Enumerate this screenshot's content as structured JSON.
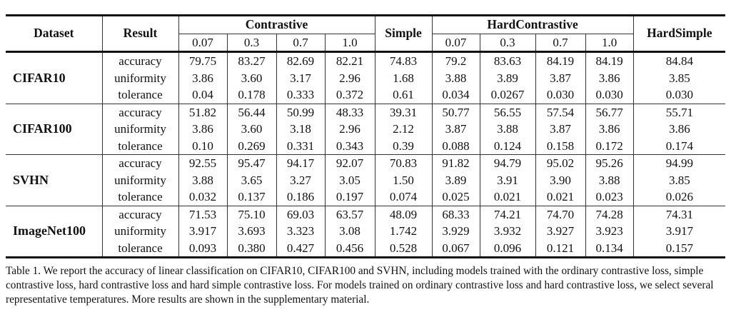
{
  "header": {
    "dataset": "Dataset",
    "result": "Result",
    "contrastive": "Contrastive",
    "simple": "Simple",
    "hard_contrastive": "HardContrastive",
    "hard_simple": "HardSimple",
    "contrastive_temps": [
      "0.07",
      "0.3",
      "0.7",
      "1.0"
    ],
    "hard_temps": [
      "0.07",
      "0.3",
      "0.7",
      "1.0"
    ]
  },
  "metrics": [
    "accuracy",
    "uniformity",
    "tolerance"
  ],
  "rows": [
    {
      "dataset": "CIFAR10",
      "values": [
        [
          "79.75",
          "83.27",
          "82.69",
          "82.21",
          "74.83",
          "79.2",
          "83.63",
          "84.19",
          "84.19",
          "84.84"
        ],
        [
          "3.86",
          "3.60",
          "3.17",
          "2.96",
          "1.68",
          "3.88",
          "3.89",
          "3.87",
          "3.86",
          "3.85"
        ],
        [
          "0.04",
          "0.178",
          "0.333",
          "0.372",
          "0.61",
          "0.034",
          "0.0267",
          "0.030",
          "0.030",
          "0.030"
        ]
      ]
    },
    {
      "dataset": "CIFAR100",
      "values": [
        [
          "51.82",
          "56.44",
          "50.99",
          "48.33",
          "39.31",
          "50.77",
          "56.55",
          "57.54",
          "56.77",
          "55.71"
        ],
        [
          "3.86",
          "3.60",
          "3.18",
          "2.96",
          "2.12",
          "3.87",
          "3.88",
          "3.87",
          "3.86",
          "3.86"
        ],
        [
          "0.10",
          "0.269",
          "0.331",
          "0.343",
          "0.39",
          "0.088",
          "0.124",
          "0.158",
          "0.172",
          "0.174"
        ]
      ]
    },
    {
      "dataset": "SVHN",
      "values": [
        [
          "92.55",
          "95.47",
          "94.17",
          "92.07",
          "70.83",
          "91.82",
          "94.79",
          "95.02",
          "95.26",
          "94.99"
        ],
        [
          "3.88",
          "3.65",
          "3.27",
          "3.05",
          "1.50",
          "3.89",
          "3.91",
          "3.90",
          "3.88",
          "3.85"
        ],
        [
          "0.032",
          "0.137",
          "0.186",
          "0.197",
          "0.074",
          "0.025",
          "0.021",
          "0.021",
          "0.023",
          "0.026"
        ]
      ]
    },
    {
      "dataset": "ImageNet100",
      "values": [
        [
          "71.53",
          "75.10",
          "69.03",
          "63.57",
          "48.09",
          "68.33",
          "74.21",
          "74.70",
          "74.28",
          "74.31"
        ],
        [
          "3.917",
          "3.693",
          "3.323",
          "3.08",
          "1.742",
          "3.929",
          "3.932",
          "3.927",
          "3.923",
          "3.917"
        ],
        [
          "0.093",
          "0.380",
          "0.427",
          "0.456",
          "0.528",
          "0.067",
          "0.096",
          "0.121",
          "0.134",
          "0.157"
        ]
      ]
    }
  ],
  "caption": "Table 1. We report the accuracy of linear classification on CIFAR10, CIFAR100 and SVHN, including models trained with the ordinary contrastive loss, simple contrastive loss, hard contrastive loss and hard simple contrastive loss. For models trained on ordinary contrastive loss and hard contrastive loss, we select several representative temperatures. More results are shown in the supplementary material."
}
